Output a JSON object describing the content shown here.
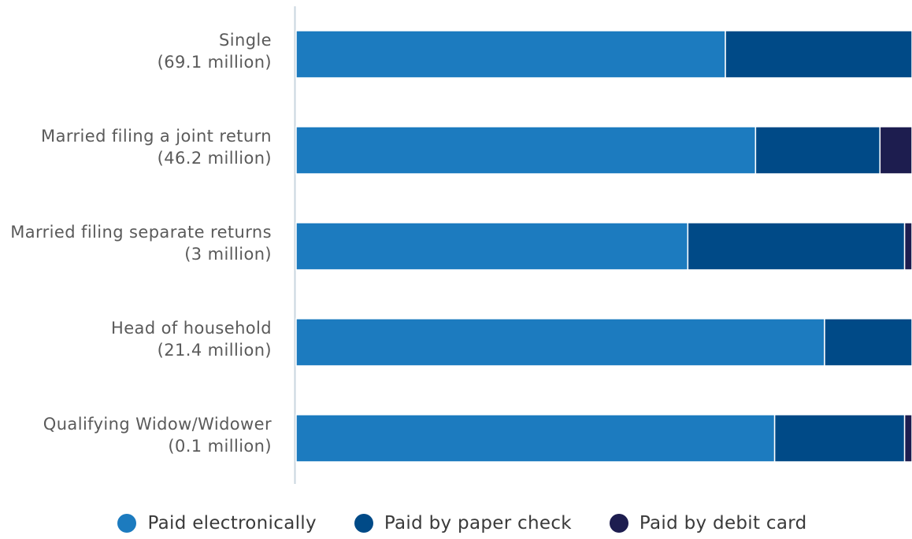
{
  "chart_data": {
    "type": "bar",
    "orientation": "horizontal",
    "stacked": true,
    "categories": [
      "Single",
      "Married filing a joint return",
      "Married filing separate returns",
      "Head of household",
      "Qualifying Widow/Widower"
    ],
    "category_counts": [
      "(69.1 million)",
      "(46.2 million)",
      "(3 million)",
      "(21.4 million)",
      "(0.1 million)"
    ],
    "series": [
      {
        "name": "Paid electronically",
        "color": "#1c7bbf",
        "values": [
          69.7,
          74.6,
          63.6,
          85.8,
          77.7
        ]
      },
      {
        "name": "Paid by paper check",
        "color": "#004a87",
        "values": [
          30.3,
          20.2,
          35.2,
          14.2,
          21.1
        ]
      },
      {
        "name": "Paid by debit card",
        "color": "#1d1d4f",
        "values": [
          0.0,
          5.2,
          1.2,
          0.0,
          1.2
        ]
      }
    ],
    "xlim": [
      0,
      100
    ],
    "legend_position": "bottom",
    "grid": false
  }
}
